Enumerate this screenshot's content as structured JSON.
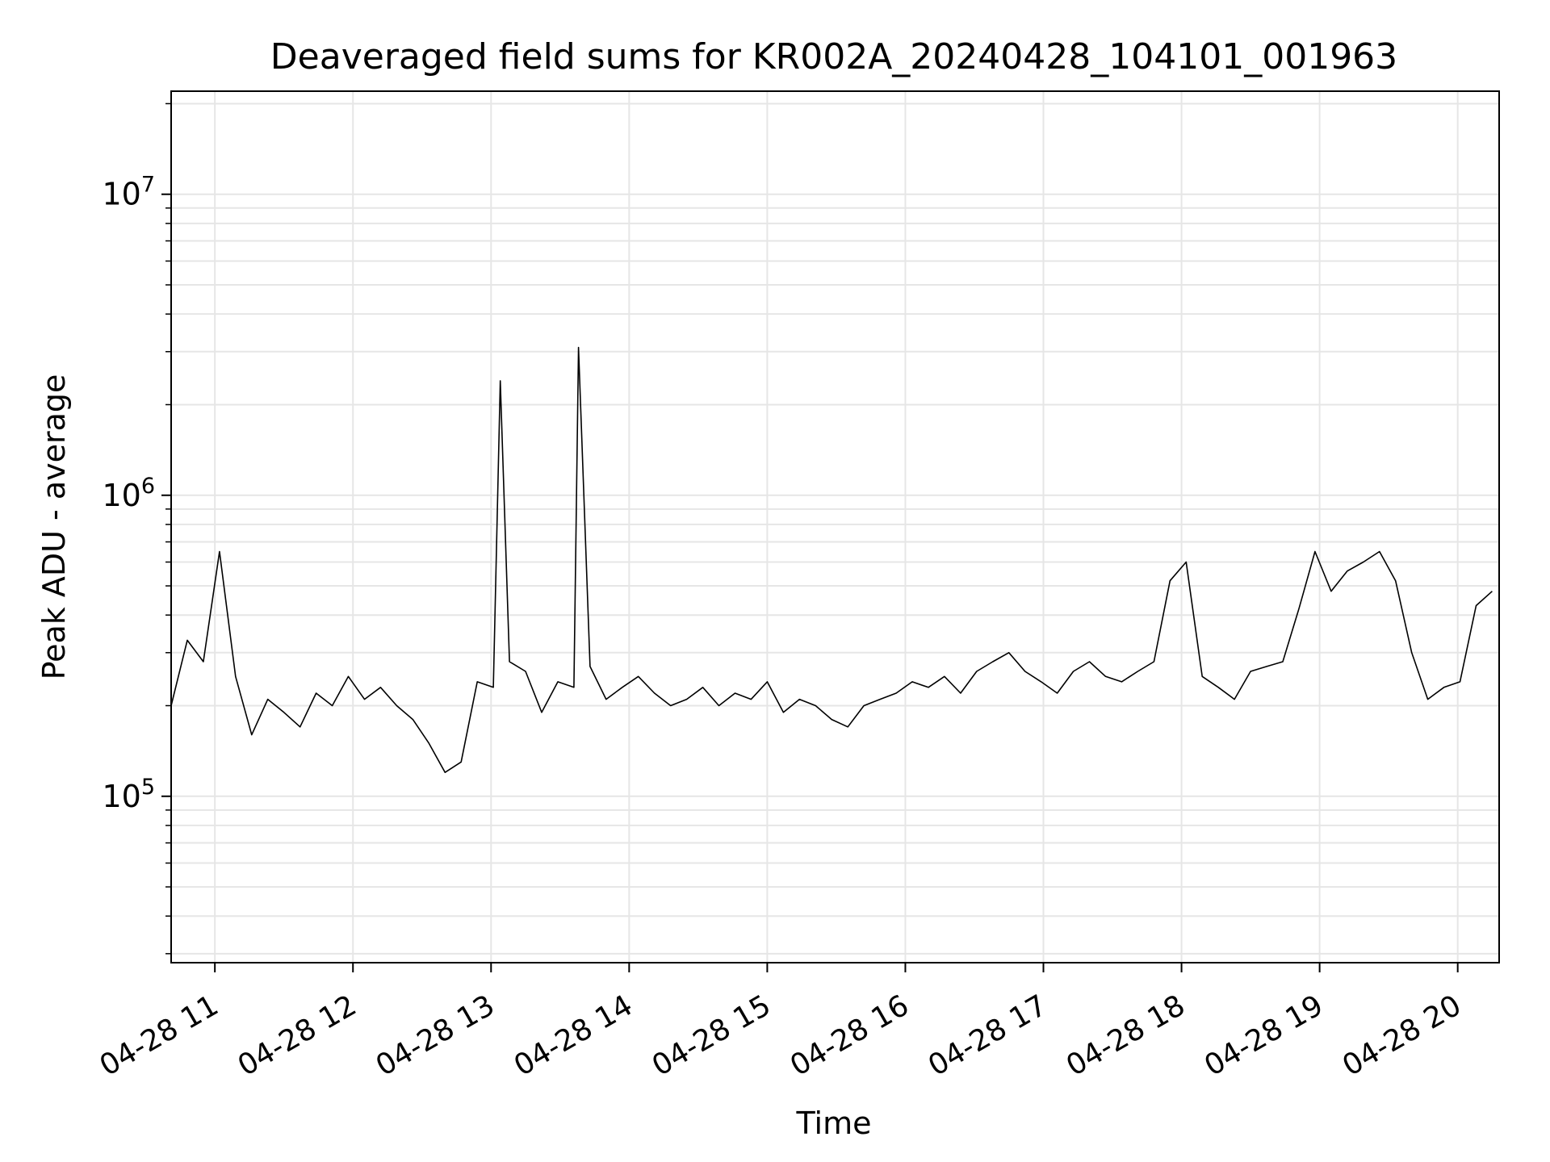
{
  "chart_data": {
    "type": "line",
    "title": "Deaveraged field sums for KR002A_20240428_104101_001963",
    "xlabel": "Time",
    "ylabel": "Peak ADU - average",
    "yscale": "log",
    "ylim": [
      28000,
      22000000
    ],
    "xlim": [
      "2024-04-28 10:41",
      "2024-04-28 20:18"
    ],
    "grid": true,
    "line_color": "#000000",
    "grid_color": "#e6e6e6",
    "x_ticks": [
      {
        "t": "2024-04-28 11:00",
        "label": "04-28 11"
      },
      {
        "t": "2024-04-28 12:00",
        "label": "04-28 12"
      },
      {
        "t": "2024-04-28 13:00",
        "label": "04-28 13"
      },
      {
        "t": "2024-04-28 14:00",
        "label": "04-28 14"
      },
      {
        "t": "2024-04-28 15:00",
        "label": "04-28 15"
      },
      {
        "t": "2024-04-28 16:00",
        "label": "04-28 16"
      },
      {
        "t": "2024-04-28 17:00",
        "label": "04-28 17"
      },
      {
        "t": "2024-04-28 18:00",
        "label": "04-28 18"
      },
      {
        "t": "2024-04-28 19:00",
        "label": "04-28 19"
      },
      {
        "t": "2024-04-28 20:00",
        "label": "04-28 20"
      }
    ],
    "y_ticks": [
      {
        "value": 100000,
        "base": "10",
        "exp": "5"
      },
      {
        "value": 1000000,
        "base": "10",
        "exp": "6"
      },
      {
        "value": 10000000,
        "base": "10",
        "exp": "7"
      }
    ],
    "series": [
      {
        "x": [
          "2024-04-28 10:41",
          "2024-04-28 10:48",
          "2024-04-28 10:55",
          "2024-04-28 11:02",
          "2024-04-28 11:09",
          "2024-04-28 11:16",
          "2024-04-28 11:23",
          "2024-04-28 11:30",
          "2024-04-28 11:37",
          "2024-04-28 11:44",
          "2024-04-28 11:51",
          "2024-04-28 11:58",
          "2024-04-28 12:05",
          "2024-04-28 12:12",
          "2024-04-28 12:19",
          "2024-04-28 12:26",
          "2024-04-28 12:33",
          "2024-04-28 12:40",
          "2024-04-28 12:47",
          "2024-04-28 12:54",
          "2024-04-28 13:01",
          "2024-04-28 13:04",
          "2024-04-28 13:08",
          "2024-04-28 13:15",
          "2024-04-28 13:22",
          "2024-04-28 13:29",
          "2024-04-28 13:36",
          "2024-04-28 13:38",
          "2024-04-28 13:43",
          "2024-04-28 13:50",
          "2024-04-28 13:57",
          "2024-04-28 14:04",
          "2024-04-28 14:11",
          "2024-04-28 14:18",
          "2024-04-28 14:25",
          "2024-04-28 14:32",
          "2024-04-28 14:39",
          "2024-04-28 14:46",
          "2024-04-28 14:53",
          "2024-04-28 15:00",
          "2024-04-28 15:07",
          "2024-04-28 15:14",
          "2024-04-28 15:21",
          "2024-04-28 15:28",
          "2024-04-28 15:35",
          "2024-04-28 15:42",
          "2024-04-28 15:49",
          "2024-04-28 15:56",
          "2024-04-28 16:03",
          "2024-04-28 16:10",
          "2024-04-28 16:17",
          "2024-04-28 16:24",
          "2024-04-28 16:31",
          "2024-04-28 16:38",
          "2024-04-28 16:45",
          "2024-04-28 16:52",
          "2024-04-28 16:59",
          "2024-04-28 17:06",
          "2024-04-28 17:13",
          "2024-04-28 17:20",
          "2024-04-28 17:27",
          "2024-04-28 17:34",
          "2024-04-28 17:41",
          "2024-04-28 17:48",
          "2024-04-28 17:55",
          "2024-04-28 18:02",
          "2024-04-28 18:09",
          "2024-04-28 18:16",
          "2024-04-28 18:23",
          "2024-04-28 18:30",
          "2024-04-28 18:37",
          "2024-04-28 18:44",
          "2024-04-28 18:51",
          "2024-04-28 18:58",
          "2024-04-28 19:05",
          "2024-04-28 19:12",
          "2024-04-28 19:19",
          "2024-04-28 19:26",
          "2024-04-28 19:33",
          "2024-04-28 19:40",
          "2024-04-28 19:47",
          "2024-04-28 19:54",
          "2024-04-28 20:01",
          "2024-04-28 20:08",
          "2024-04-28 20:15"
        ],
        "y": [
          200000,
          330000,
          280000,
          650000,
          250000,
          160000,
          210000,
          190000,
          170000,
          220000,
          200000,
          250000,
          210000,
          230000,
          200000,
          180000,
          150000,
          120000,
          130000,
          240000,
          230000,
          2400000,
          280000,
          260000,
          190000,
          240000,
          230000,
          3100000,
          270000,
          210000,
          230000,
          250000,
          220000,
          200000,
          210000,
          230000,
          200000,
          220000,
          210000,
          240000,
          190000,
          210000,
          200000,
          180000,
          170000,
          200000,
          210000,
          220000,
          240000,
          230000,
          250000,
          220000,
          260000,
          280000,
          300000,
          260000,
          240000,
          220000,
          260000,
          280000,
          250000,
          240000,
          260000,
          280000,
          520000,
          600000,
          250000,
          230000,
          210000,
          260000,
          270000,
          280000,
          420000,
          650000,
          480000,
          560000,
          600000,
          650000,
          520000,
          300000,
          210000,
          230000,
          240000,
          430000,
          480000
        ]
      }
    ]
  }
}
